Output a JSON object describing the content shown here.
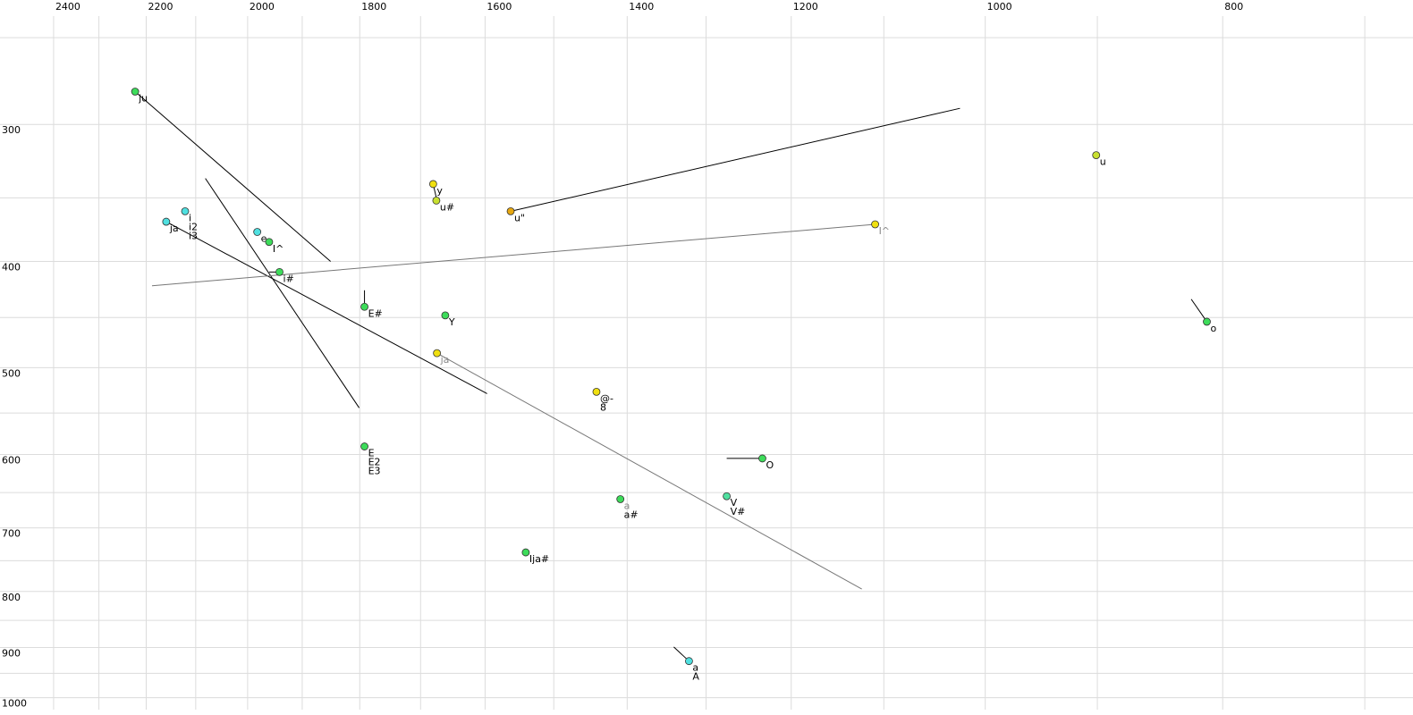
{
  "chart_data": {
    "type": "scatter",
    "xscale": "log",
    "yscale": "log",
    "xlim": [
      2524,
      669
    ],
    "ylim": [
      1037,
      231
    ],
    "xticks": [
      2400,
      2200,
      2000,
      1800,
      1600,
      1400,
      1200,
      1000,
      800
    ],
    "xminor": [
      2300,
      2100,
      1900,
      1700,
      1500,
      1300,
      1100,
      900,
      700
    ],
    "yticks": [
      300,
      400,
      500,
      600,
      700,
      800,
      900,
      1000
    ],
    "yminor": [
      250,
      350,
      450,
      550,
      650,
      750,
      850,
      950
    ],
    "grid": true,
    "points": [
      {
        "labels": [
          "ju"
        ],
        "color": "#3ddc5a",
        "x": 2223,
        "y": 280
      },
      {
        "labels": [
          "ja"
        ],
        "color": "#4fe0e0",
        "x": 2159,
        "y": 368
      },
      {
        "labels": [
          "i",
          "i2",
          "i3"
        ],
        "color": "#4fe0e0",
        "x": 2121,
        "y": 360
      },
      {
        "labels": [
          "e"
        ],
        "color": "#4fe0e0",
        "x": 1982,
        "y": 376
      },
      {
        "labels": [
          "I^"
        ],
        "color": "#3ddc5a",
        "x": 1960,
        "y": 384
      },
      {
        "labels": [
          "i#"
        ],
        "color": "#3ddc5a",
        "x": 1941,
        "y": 409
      },
      {
        "labels": [
          "E#"
        ],
        "color": "#3ddc5a",
        "x": 1792,
        "y": 440
      },
      {
        "labels": [
          "Y"
        ],
        "color": "#3ddc5a",
        "x": 1661,
        "y": 448
      },
      {
        "labels": [
          "y"
        ],
        "color": "#f0e010",
        "x": 1680,
        "y": 340
      },
      {
        "labels": [
          "u#"
        ],
        "color": "#c8e030",
        "x": 1675,
        "y": 352
      },
      {
        "labels": [
          "u\""
        ],
        "color": "#e8a810",
        "x": 1562,
        "y": 360
      },
      {
        "labels": [
          "I^"
        ],
        "color": "#f0e010",
        "x": 1109,
        "y": 370,
        "label_color": "#888"
      },
      {
        "labels": [
          "u"
        ],
        "color": "#c8e030",
        "x": 901,
        "y": 320
      },
      {
        "labels": [
          "o"
        ],
        "color": "#3ddc5a",
        "x": 812,
        "y": 454
      },
      {
        "labels": [
          "ja"
        ],
        "color": "#f0e010",
        "x": 1674,
        "y": 485,
        "label_color": "#888"
      },
      {
        "labels": [
          "@-",
          "8"
        ],
        "color": "#f0e010",
        "x": 1441,
        "y": 526
      },
      {
        "labels": [
          "E",
          "E2",
          "E3"
        ],
        "color": "#3ddc5a",
        "x": 1792,
        "y": 590
      },
      {
        "labels": [
          "O"
        ],
        "color": "#3ddc5a",
        "x": 1233,
        "y": 605
      },
      {
        "labels": [
          "a",
          "a#"
        ],
        "color": "#3ddc5a",
        "x": 1409,
        "y": 659,
        "label_colors": [
          "#888",
          "#000"
        ]
      },
      {
        "labels": [
          "V",
          "V#"
        ],
        "color": "#50e0a0",
        "x": 1275,
        "y": 655
      },
      {
        "labels": [
          "Ija#"
        ],
        "color": "#3ddc5a",
        "x": 1540,
        "y": 737
      },
      {
        "labels": [
          "a",
          "A"
        ],
        "color": "#4fe0e0",
        "x": 1321,
        "y": 926
      }
    ],
    "segments": [
      {
        "x": [
          2223,
          1850
        ],
        "y": [
          280,
          400
        ],
        "color": "#000"
      },
      {
        "x": [
          2159,
          1597
        ],
        "y": [
          368,
          528
        ],
        "color": "#000"
      },
      {
        "x": [
          2081,
          1801
        ],
        "y": [
          336,
          544
        ],
        "color": "#000"
      },
      {
        "x": [
          1941,
          1960
        ],
        "y": [
          409,
          409
        ],
        "color": "#000"
      },
      {
        "x": [
          1792,
          1792
        ],
        "y": [
          440,
          425
        ],
        "color": "#000"
      },
      {
        "x": [
          1680,
          1675
        ],
        "y": [
          340,
          350
        ],
        "color": "#000"
      },
      {
        "x": [
          1562,
          1024
        ],
        "y": [
          360,
          290
        ],
        "color": "#000"
      },
      {
        "x": [
          1109,
          2188
        ],
        "y": [
          370,
          421
        ],
        "color": "#777"
      },
      {
        "x": [
          812,
          824
        ],
        "y": [
          454,
          433
        ],
        "color": "#000"
      },
      {
        "x": [
          1674,
          1123
        ],
        "y": [
          485,
          796
        ],
        "color": "#777"
      },
      {
        "x": [
          1233,
          1275
        ],
        "y": [
          605,
          605
        ],
        "color": "#000"
      },
      {
        "x": [
          1321,
          1340
        ],
        "y": [
          926,
          899
        ],
        "color": "#000"
      }
    ]
  }
}
